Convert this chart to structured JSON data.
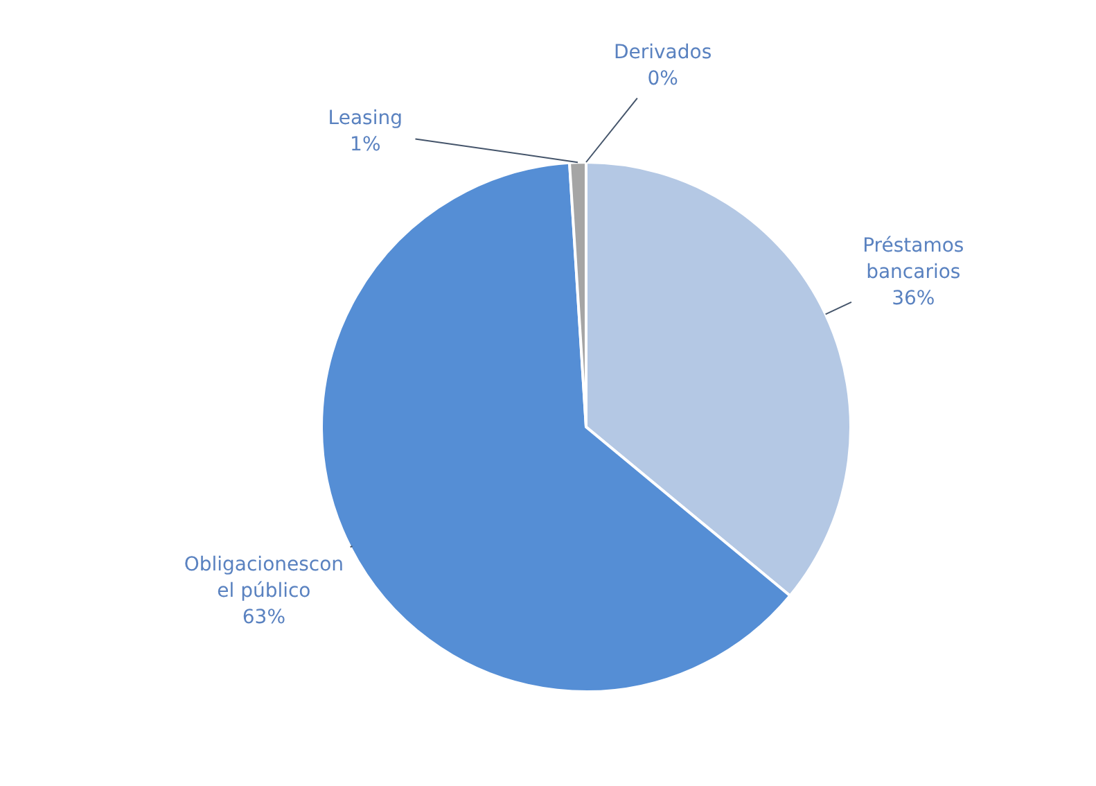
{
  "chart_data": {
    "type": "pie",
    "categories": [
      "Préstamos bancarios",
      "Obligacionescon el público",
      "Leasing",
      "Derivados"
    ],
    "values": [
      36,
      63,
      1,
      0
    ],
    "colors": [
      "#b4c8e4",
      "#558ed5",
      "#a5a5a5",
      "#264478"
    ],
    "value_labels": [
      "36%",
      "63%",
      "1%",
      "0%"
    ]
  }
}
